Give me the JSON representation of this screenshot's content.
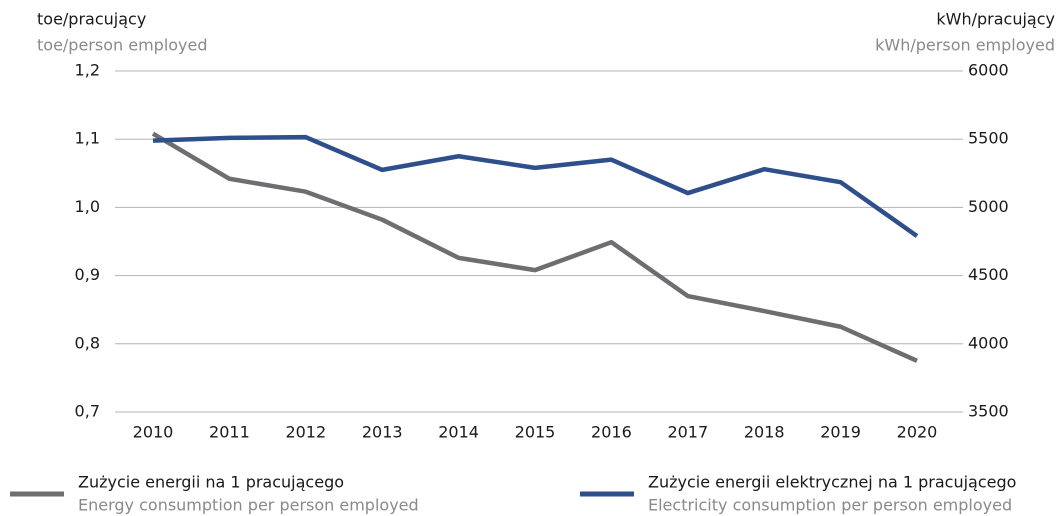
{
  "chart_data": {
    "type": "line",
    "y_label": "toe/pracujący",
    "y_label_en": "toe/person employed",
    "y2_label": "kWh/pracujący",
    "y2_label_en": "kWh/person employed",
    "categories": [
      "2010",
      "2011",
      "2012",
      "2013",
      "2014",
      "2015",
      "2016",
      "2017",
      "2018",
      "2019",
      "2020"
    ],
    "series": [
      {
        "name": "Zużycie energii na 1 pracującego",
        "name_en": "Energy consumption per person employed",
        "color": "#6d6e71",
        "axis": "y",
        "values": [
          1.108,
          1.042,
          1.023,
          0.982,
          0.926,
          0.908,
          0.949,
          0.87,
          0.848,
          0.825,
          0.775
        ]
      },
      {
        "name": "Zużycie energii elektrycznej na 1 pracującego",
        "name_en": "Electricity consumption per person employed",
        "color": "#2f4e8c",
        "axis": "y2",
        "values": [
          5490,
          5510,
          5515,
          5275,
          5375,
          5290,
          5350,
          5105,
          5280,
          5185,
          4790
        ]
      }
    ],
    "ylim": [
      0.7,
      1.2
    ],
    "yticks": [
      {
        "value": 0.7,
        "label": "0,7"
      },
      {
        "value": 0.8,
        "label": "0,8"
      },
      {
        "value": 0.9,
        "label": "0,9"
      },
      {
        "value": 1.0,
        "label": "1,0"
      },
      {
        "value": 1.1,
        "label": "1,1"
      },
      {
        "value": 1.2,
        "label": "1,2"
      }
    ],
    "y2lim": [
      3500,
      6000
    ],
    "y2ticks": [
      3500,
      4000,
      4500,
      5000,
      5500,
      6000
    ],
    "grid": true
  }
}
